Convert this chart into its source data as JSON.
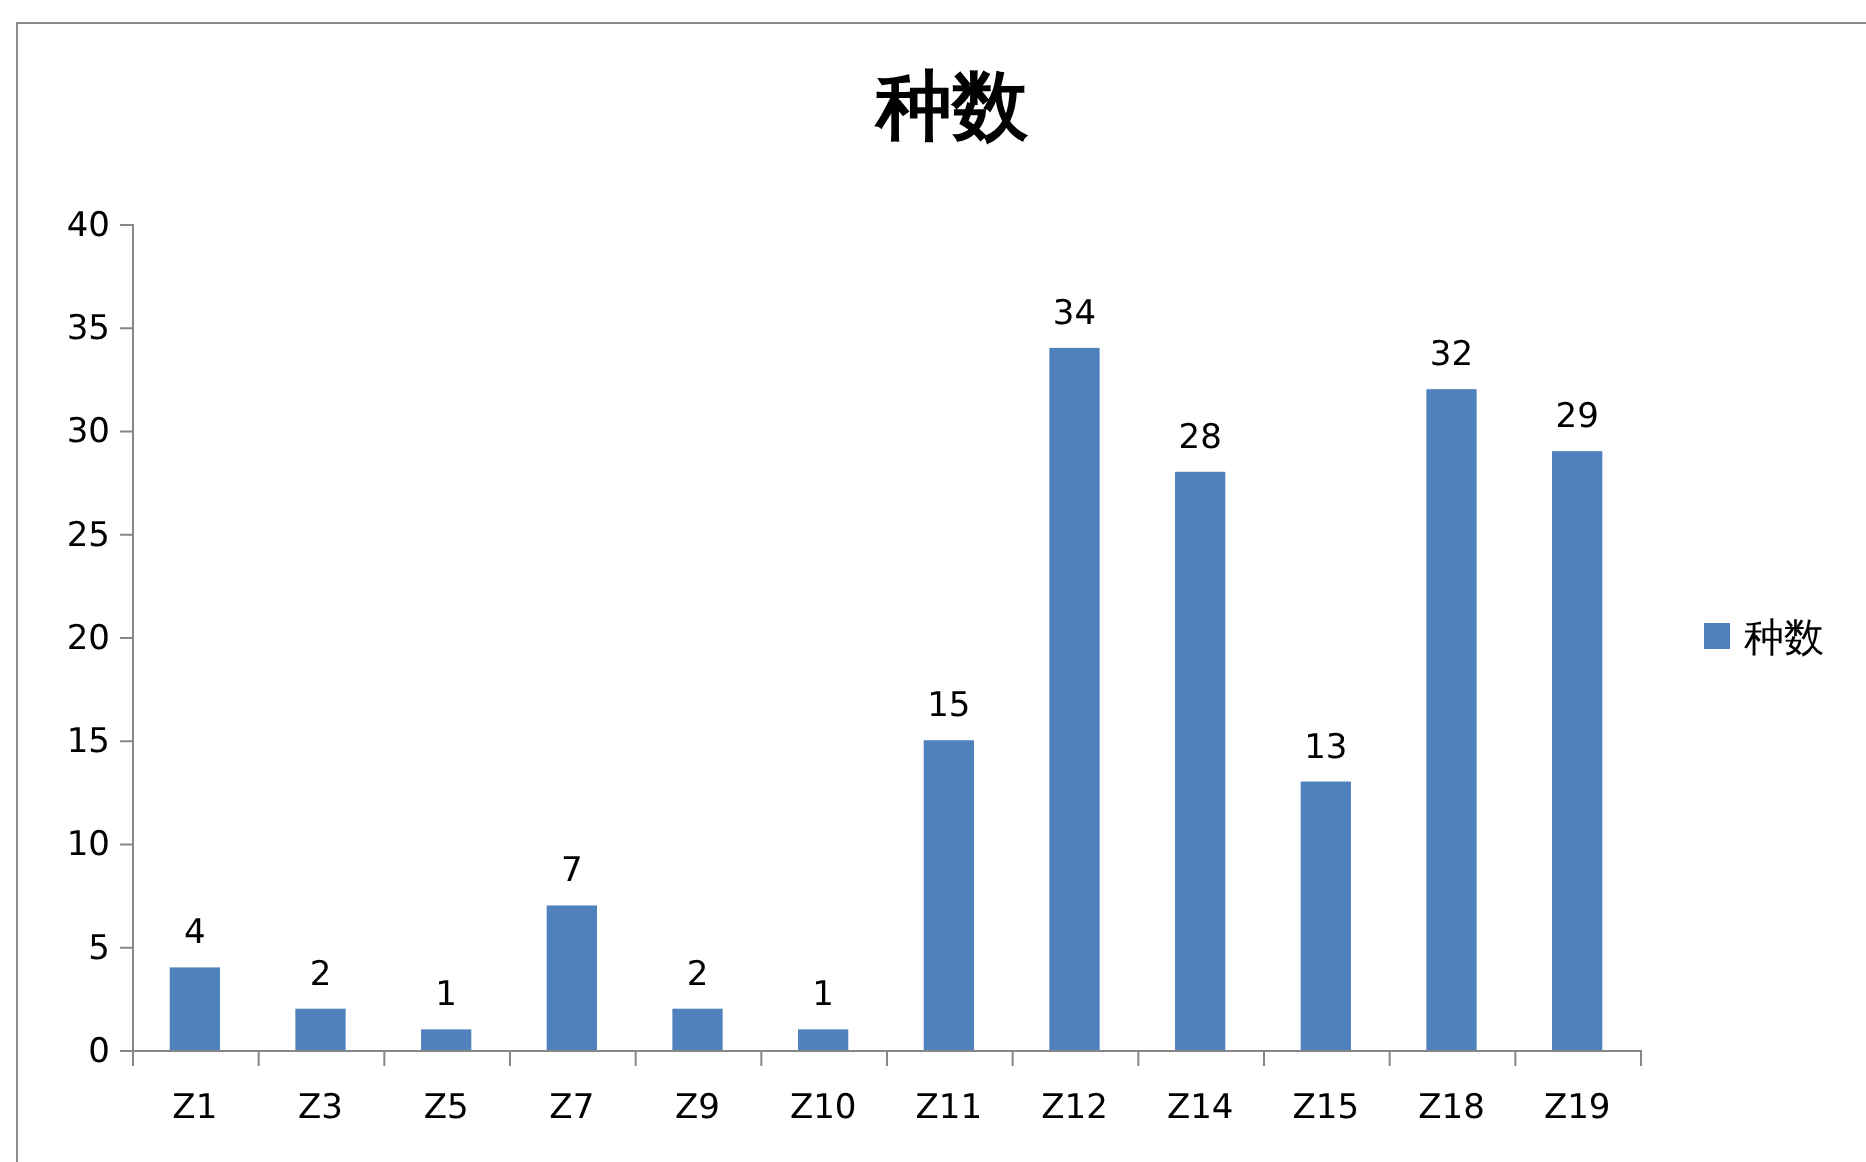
{
  "chart_data": {
    "type": "bar",
    "title": "种数",
    "categories": [
      "Z1",
      "Z3",
      "Z5",
      "Z7",
      "Z9",
      "Z10",
      "Z11",
      "Z12",
      "Z14",
      "Z15",
      "Z18",
      "Z19"
    ],
    "series": [
      {
        "name": "种数",
        "color": "#4f81bd",
        "values": [
          4,
          2,
          1,
          7,
          2,
          1,
          15,
          34,
          28,
          13,
          32,
          29
        ]
      }
    ],
    "ylim": [
      0,
      40
    ],
    "yticks": [
      0,
      5,
      10,
      15,
      20,
      25,
      30,
      35,
      40
    ],
    "grid": false,
    "legend": "right",
    "data_labels": true
  }
}
